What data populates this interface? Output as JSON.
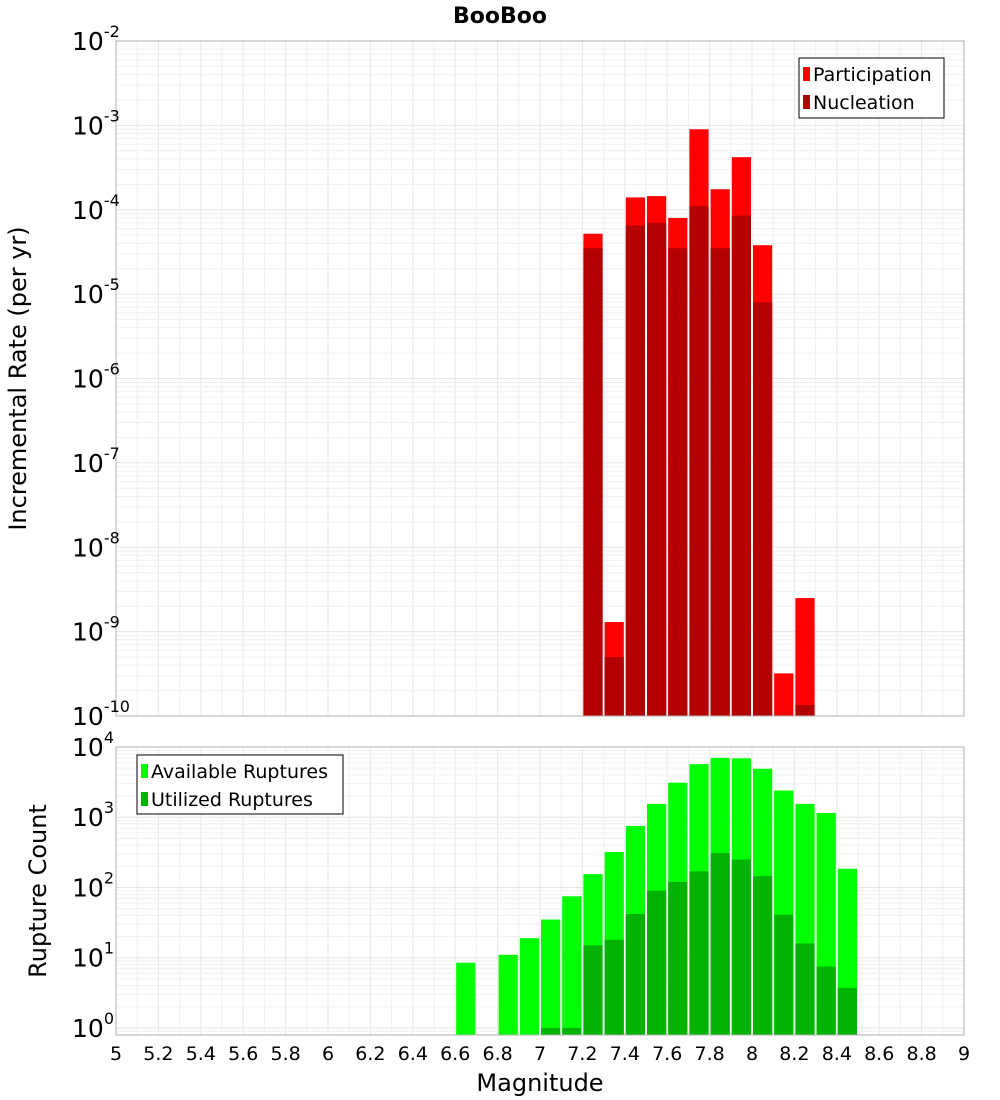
{
  "chart_data": [
    {
      "type": "bar",
      "title": "BooBoo",
      "xlabel": "",
      "ylabel": "Incremental Rate (per yr)",
      "yscale": "log",
      "ylim_exp": [
        -10,
        -2
      ],
      "xlim": [
        5,
        9
      ],
      "bar_width": 0.1,
      "legend_position": "top-right",
      "series": [
        {
          "name": "Participation",
          "color": "#ff0000",
          "x": [
            7.25,
            7.35,
            7.45,
            7.55,
            7.65,
            7.75,
            7.85,
            7.95,
            8.05,
            8.15,
            8.25
          ],
          "values": [
            5.2e-05,
            1.3e-09,
            0.00014,
            0.000145,
            8e-05,
            0.0009,
            0.000175,
            0.00042,
            3.8e-05,
            3.2e-10,
            2.5e-09
          ]
        },
        {
          "name": "Nucleation",
          "color": "#b30000",
          "x": [
            7.25,
            7.35,
            7.45,
            7.55,
            7.65,
            7.75,
            7.85,
            7.95,
            8.05,
            8.25
          ],
          "values": [
            3.5e-05,
            5e-10,
            6.5e-05,
            7e-05,
            3.5e-05,
            0.00011,
            3.5e-05,
            8.5e-05,
            8e-06,
            1.35e-10
          ]
        }
      ]
    },
    {
      "type": "bar",
      "title": "",
      "xlabel": "Magnitude",
      "ylabel": "Rupture Count",
      "yscale": "log",
      "ylim_exp": [
        -0.1,
        4
      ],
      "xlim": [
        5,
        9
      ],
      "bar_width": 0.1,
      "legend_position": "top-left",
      "xticks": [
        "5",
        "5.2",
        "5.4",
        "5.6",
        "5.8",
        "6",
        "6.2",
        "6.4",
        "6.6",
        "6.8",
        "7",
        "7.2",
        "7.4",
        "7.6",
        "7.8",
        "8",
        "8.2",
        "8.4",
        "8.6",
        "8.8",
        "9"
      ],
      "series": [
        {
          "name": "Available Ruptures",
          "color": "#00ff00",
          "x": [
            6.65,
            6.85,
            6.95,
            7.05,
            7.15,
            7.25,
            7.35,
            7.45,
            7.55,
            7.65,
            7.75,
            7.85,
            7.95,
            8.05,
            8.15,
            8.25,
            8.35,
            8.45
          ],
          "values": [
            8.5,
            11,
            19,
            35,
            75,
            155,
            320,
            750,
            1550,
            3100,
            5700,
            7000,
            6900,
            4900,
            2400,
            1550,
            1150,
            185
          ]
        },
        {
          "name": "Utilized Ruptures",
          "color": "#00b300",
          "x": [
            7.05,
            7.15,
            7.25,
            7.35,
            7.45,
            7.55,
            7.65,
            7.75,
            7.85,
            7.95,
            8.05,
            8.15,
            8.25,
            8.35,
            8.45
          ],
          "values": [
            1,
            1,
            15,
            18,
            42,
            90,
            120,
            170,
            310,
            250,
            145,
            41,
            16,
            7.5,
            3.7
          ]
        }
      ]
    }
  ]
}
